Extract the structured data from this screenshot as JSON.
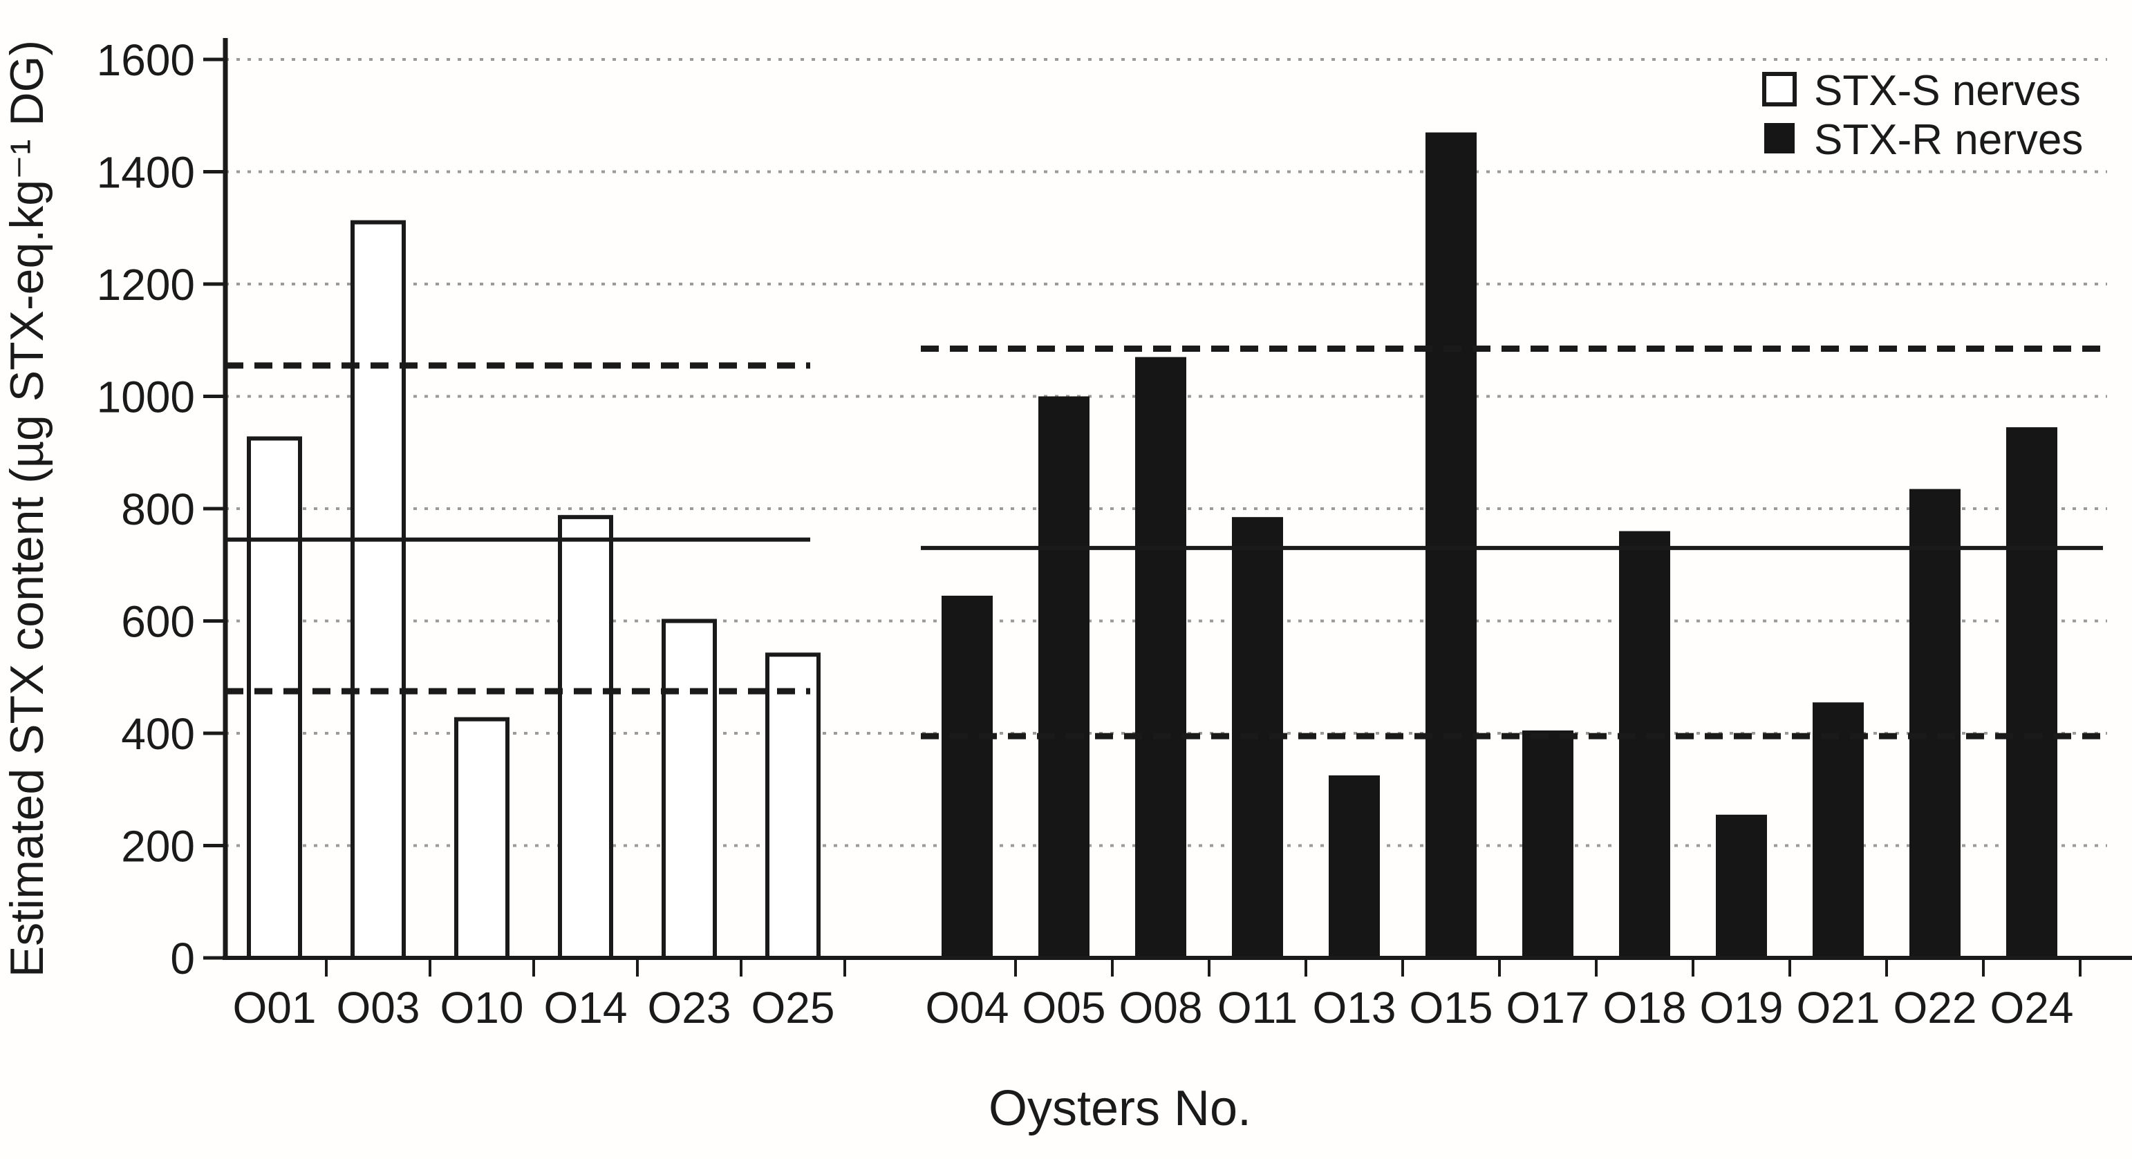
{
  "chart_data": {
    "type": "bar",
    "title": "",
    "xlabel": "Oysters No.",
    "ylabel": "Estimated STX content (µg STX-eq.kg⁻¹ DG)",
    "ylim": [
      0,
      1600
    ],
    "ytick_step": 200,
    "yticks": [
      0,
      200,
      400,
      600,
      800,
      1000,
      1200,
      1400,
      1600
    ],
    "grid": "dotted horizontal gridlines at every 200 units",
    "legend_position": "top-right",
    "legend": [
      {
        "label": "STX-S nerves",
        "fill": "open"
      },
      {
        "label": "STX-R nerves",
        "fill": "filled"
      }
    ],
    "groups": [
      {
        "name": "STX-S nerves",
        "bar_style": "open",
        "categories": [
          "O01",
          "O03",
          "O10",
          "O14",
          "O23",
          "O25"
        ],
        "values": [
          925,
          1310,
          425,
          785,
          600,
          540
        ],
        "solid_line": 745,
        "dashed_line_upper": 1055,
        "dashed_line_lower": 475
      },
      {
        "name": "STX-R nerves",
        "bar_style": "filled",
        "categories": [
          "O04",
          "O05",
          "O08",
          "O11",
          "O13",
          "O15",
          "O17",
          "O18",
          "O19",
          "O21",
          "O22",
          "O24"
        ],
        "values": [
          645,
          1000,
          1070,
          785,
          325,
          1470,
          405,
          760,
          255,
          455,
          835,
          945
        ],
        "solid_line": 730,
        "dashed_line_upper": 1085,
        "dashed_line_lower": 395
      }
    ],
    "colors": {
      "open_bar_fill": "#ffffff",
      "filled_bar_fill": "#161616",
      "axis": "#1a1a1a",
      "gridline": "#9a9a9a",
      "background": "#fffefc"
    }
  }
}
